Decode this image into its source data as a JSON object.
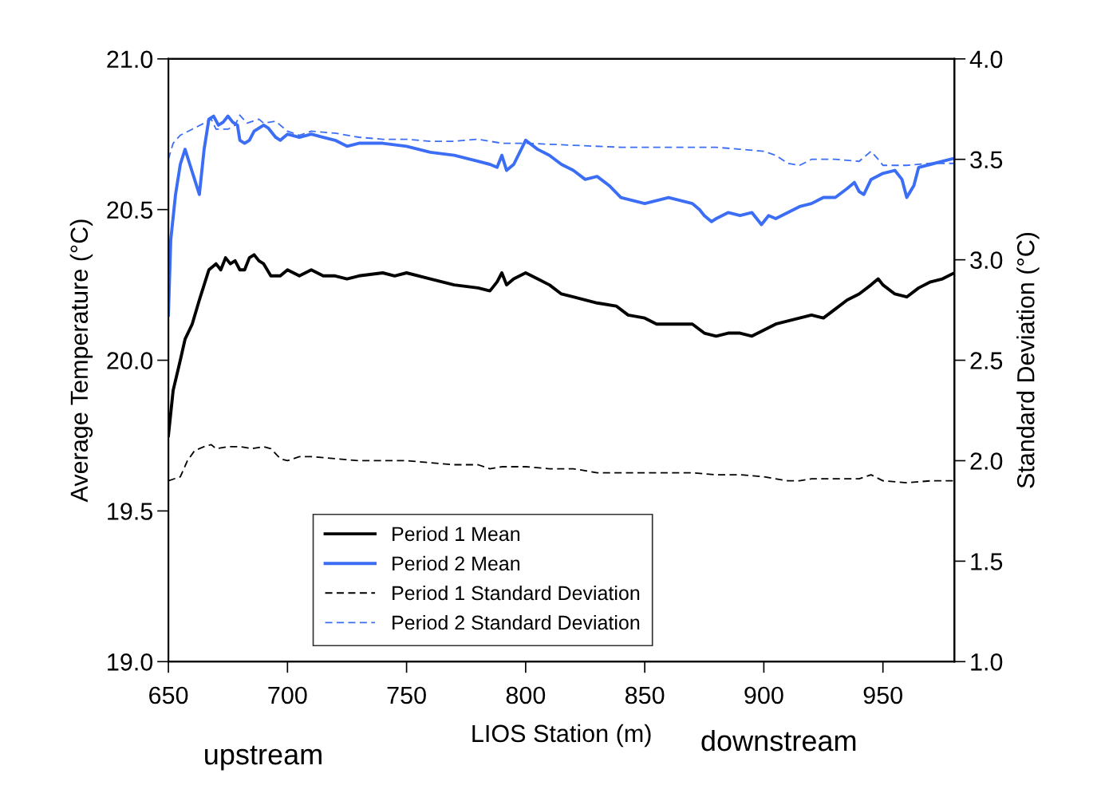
{
  "chart_data": {
    "type": "line",
    "xlabel": "LIOS Station (m)",
    "ylabel": "Average Temperature (°C)",
    "y2label": "Standard Deviation (°C)",
    "annotations": [
      "upstream",
      "downstream"
    ],
    "xlim": [
      650,
      980
    ],
    "xticks": [
      650,
      700,
      750,
      800,
      850,
      900,
      950
    ],
    "ylim": [
      19.0,
      21.0
    ],
    "yticks": [
      {
        "value": 19.0,
        "label": "19.0"
      },
      {
        "value": 19.5,
        "label": "19.5"
      },
      {
        "value": 20.0,
        "label": "20.0"
      },
      {
        "value": 20.5,
        "label": "20.5"
      },
      {
        "value": 21.0,
        "label": "21.0"
      }
    ],
    "y2lim": [
      1.0,
      4.0
    ],
    "y2ticks": [
      {
        "value": 1.0,
        "label": "1.0"
      },
      1.5,
      {
        "value": 2.0,
        "label": "2.0"
      },
      2.5,
      {
        "value": 3.0,
        "label": "3.0"
      },
      3.5,
      {
        "value": 4.0,
        "label": "4.0"
      }
    ],
    "grid": false,
    "legend": "bottom",
    "marker": "none",
    "series": [
      {
        "name": "Period 1 Mean",
        "color": "#000000",
        "line_style": "solid",
        "x": [
          650,
          652,
          655,
          657,
          660,
          663,
          665,
          667,
          670,
          672,
          674,
          676,
          678,
          680,
          682,
          684,
          686,
          688,
          690,
          693,
          697,
          700,
          705,
          710,
          715,
          720,
          725,
          730,
          740,
          745,
          750,
          760,
          770,
          780,
          785,
          788,
          790,
          792,
          795,
          800,
          805,
          810,
          815,
          820,
          830,
          838,
          843,
          850,
          855,
          860,
          870,
          875,
          880,
          885,
          890,
          895,
          900,
          905,
          910,
          915,
          920,
          925,
          930,
          935,
          940,
          945,
          948,
          950,
          955,
          960,
          965,
          970,
          975,
          980
        ],
        "values": [
          19.75,
          19.9,
          20.0,
          20.07,
          20.12,
          20.2,
          20.25,
          20.3,
          20.32,
          20.3,
          20.34,
          20.32,
          20.33,
          20.3,
          20.3,
          20.34,
          20.35,
          20.33,
          20.32,
          20.28,
          20.28,
          20.3,
          20.28,
          20.3,
          20.28,
          20.28,
          20.27,
          20.28,
          20.29,
          20.28,
          20.29,
          20.27,
          20.25,
          20.24,
          20.23,
          20.26,
          20.29,
          20.25,
          20.27,
          20.29,
          20.27,
          20.25,
          20.22,
          20.21,
          20.19,
          20.18,
          20.15,
          20.14,
          20.12,
          20.12,
          20.12,
          20.09,
          20.08,
          20.09,
          20.09,
          20.08,
          20.1,
          20.12,
          20.13,
          20.14,
          20.15,
          20.14,
          20.17,
          20.2,
          20.22,
          20.25,
          20.27,
          20.25,
          20.22,
          20.21,
          20.24,
          20.26,
          20.27,
          20.29
        ]
      },
      {
        "name": "Period 2 Mean",
        "color": "#3b6ef5",
        "line_style": "solid",
        "x": [
          650,
          651,
          653,
          655,
          657,
          659,
          661,
          663,
          665,
          667,
          669,
          671,
          673,
          675,
          677,
          679,
          680,
          682,
          684,
          686,
          688,
          690,
          692,
          695,
          697,
          700,
          705,
          710,
          715,
          720,
          725,
          730,
          740,
          750,
          755,
          760,
          770,
          775,
          780,
          785,
          788,
          790,
          792,
          795,
          800,
          805,
          810,
          815,
          820,
          825,
          830,
          835,
          840,
          845,
          850,
          855,
          860,
          865,
          870,
          873,
          875,
          878,
          880,
          885,
          890,
          895,
          897,
          899,
          902,
          905,
          910,
          915,
          920,
          925,
          930,
          935,
          938,
          940,
          942,
          945,
          950,
          955,
          958,
          960,
          963,
          965,
          970,
          975,
          980
        ],
        "values": [
          20.15,
          20.4,
          20.55,
          20.65,
          20.7,
          20.65,
          20.6,
          20.55,
          20.7,
          20.8,
          20.81,
          20.78,
          20.79,
          20.81,
          20.79,
          20.78,
          20.73,
          20.72,
          20.73,
          20.76,
          20.77,
          20.78,
          20.77,
          20.74,
          20.73,
          20.75,
          20.74,
          20.75,
          20.74,
          20.73,
          20.71,
          20.72,
          20.72,
          20.71,
          20.7,
          20.69,
          20.68,
          20.67,
          20.66,
          20.65,
          20.64,
          20.68,
          20.63,
          20.65,
          20.73,
          20.7,
          20.68,
          20.65,
          20.63,
          20.6,
          20.61,
          20.58,
          20.54,
          20.53,
          20.52,
          20.53,
          20.54,
          20.53,
          20.52,
          20.5,
          20.48,
          20.46,
          20.47,
          20.49,
          20.48,
          20.49,
          20.47,
          20.45,
          20.48,
          20.47,
          20.49,
          20.51,
          20.52,
          20.54,
          20.54,
          20.57,
          20.59,
          20.56,
          20.55,
          20.6,
          20.62,
          20.63,
          20.6,
          20.54,
          20.58,
          20.64,
          20.65,
          20.66,
          20.67
        ]
      },
      {
        "name": "Period 1 Standard Deviation",
        "color": "#000000",
        "line_style": "dashed",
        "axis": "y2",
        "x": [
          650,
          655,
          658,
          661,
          665,
          668,
          670,
          675,
          680,
          685,
          690,
          693,
          697,
          700,
          705,
          710,
          720,
          730,
          740,
          750,
          760,
          770,
          780,
          785,
          790,
          800,
          810,
          820,
          830,
          850,
          870,
          880,
          890,
          900,
          910,
          915,
          920,
          930,
          940,
          945,
          950,
          960,
          970,
          980
        ],
        "values": [
          1.9,
          1.92,
          2.0,
          2.05,
          2.07,
          2.08,
          2.06,
          2.07,
          2.07,
          2.06,
          2.07,
          2.06,
          2.01,
          2.0,
          2.02,
          2.02,
          2.01,
          2.0,
          2.0,
          2.0,
          1.99,
          1.98,
          1.98,
          1.96,
          1.97,
          1.97,
          1.96,
          1.96,
          1.94,
          1.94,
          1.94,
          1.93,
          1.93,
          1.92,
          1.9,
          1.9,
          1.91,
          1.91,
          1.91,
          1.93,
          1.9,
          1.89,
          1.9,
          1.9
        ]
      },
      {
        "name": "Period 2 Standard Deviation",
        "color": "#3b6ef5",
        "line_style": "dashed",
        "axis": "y2",
        "x": [
          650,
          652,
          655,
          660,
          665,
          668,
          670,
          675,
          678,
          680,
          683,
          688,
          690,
          695,
          700,
          705,
          710,
          720,
          730,
          740,
          750,
          760,
          770,
          780,
          790,
          800,
          820,
          840,
          860,
          880,
          890,
          900,
          905,
          910,
          915,
          920,
          930,
          940,
          945,
          948,
          950,
          960,
          970,
          980
        ],
        "values": [
          3.5,
          3.58,
          3.62,
          3.65,
          3.68,
          3.7,
          3.65,
          3.65,
          3.67,
          3.72,
          3.68,
          3.7,
          3.68,
          3.69,
          3.64,
          3.62,
          3.64,
          3.63,
          3.61,
          3.6,
          3.6,
          3.59,
          3.59,
          3.6,
          3.58,
          3.58,
          3.57,
          3.56,
          3.56,
          3.56,
          3.55,
          3.54,
          3.52,
          3.48,
          3.47,
          3.5,
          3.5,
          3.49,
          3.54,
          3.5,
          3.47,
          3.47,
          3.48,
          3.48
        ]
      }
    ]
  }
}
